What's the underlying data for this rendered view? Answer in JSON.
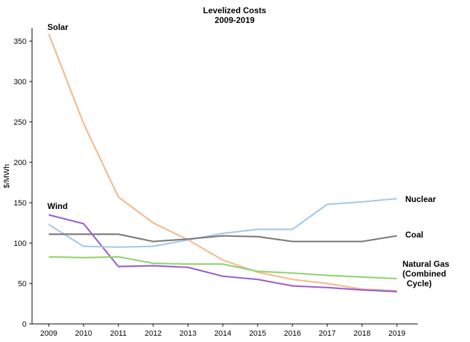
{
  "chart_data": {
    "type": "line",
    "title": "Levelized Costs",
    "subtitle": "2009-2019",
    "ylabel": "$/MWh",
    "xlabel": "",
    "ylim": [
      0,
      350
    ],
    "yticks": [
      0,
      50,
      100,
      150,
      200,
      250,
      300,
      350
    ],
    "x": [
      "2009",
      "2010",
      "2011",
      "2012",
      "2013",
      "2014",
      "2015",
      "2016",
      "2017",
      "2018",
      "2019"
    ],
    "grid": false,
    "series": [
      {
        "name": "Solar",
        "color": "#f6b98a",
        "values": [
          359,
          248,
          157,
          125,
          104,
          79,
          64,
          55,
          50,
          43,
          41
        ]
      },
      {
        "name": "Wind",
        "color": "#9b5fcf",
        "values": [
          135,
          124,
          71,
          72,
          70,
          59,
          55,
          47,
          45,
          42,
          40
        ]
      },
      {
        "name": "Nuclear",
        "color": "#a7c8e8",
        "values": [
          123,
          96,
          95,
          96,
          104,
          112,
          117,
          117,
          148,
          151,
          155
        ]
      },
      {
        "name": "Coal",
        "color": "#7a7a7a",
        "values": [
          111,
          111,
          111,
          102,
          105,
          109,
          108,
          102,
          102,
          102,
          109
        ]
      },
      {
        "name": "Natural Gas (Combined Cycle)",
        "label_lines": [
          "Natural Gas",
          "(Combined",
          "Cycle)"
        ],
        "color": "#92d36e",
        "values": [
          83,
          82,
          83,
          75,
          74,
          74,
          65,
          63,
          60,
          58,
          56
        ]
      }
    ]
  }
}
